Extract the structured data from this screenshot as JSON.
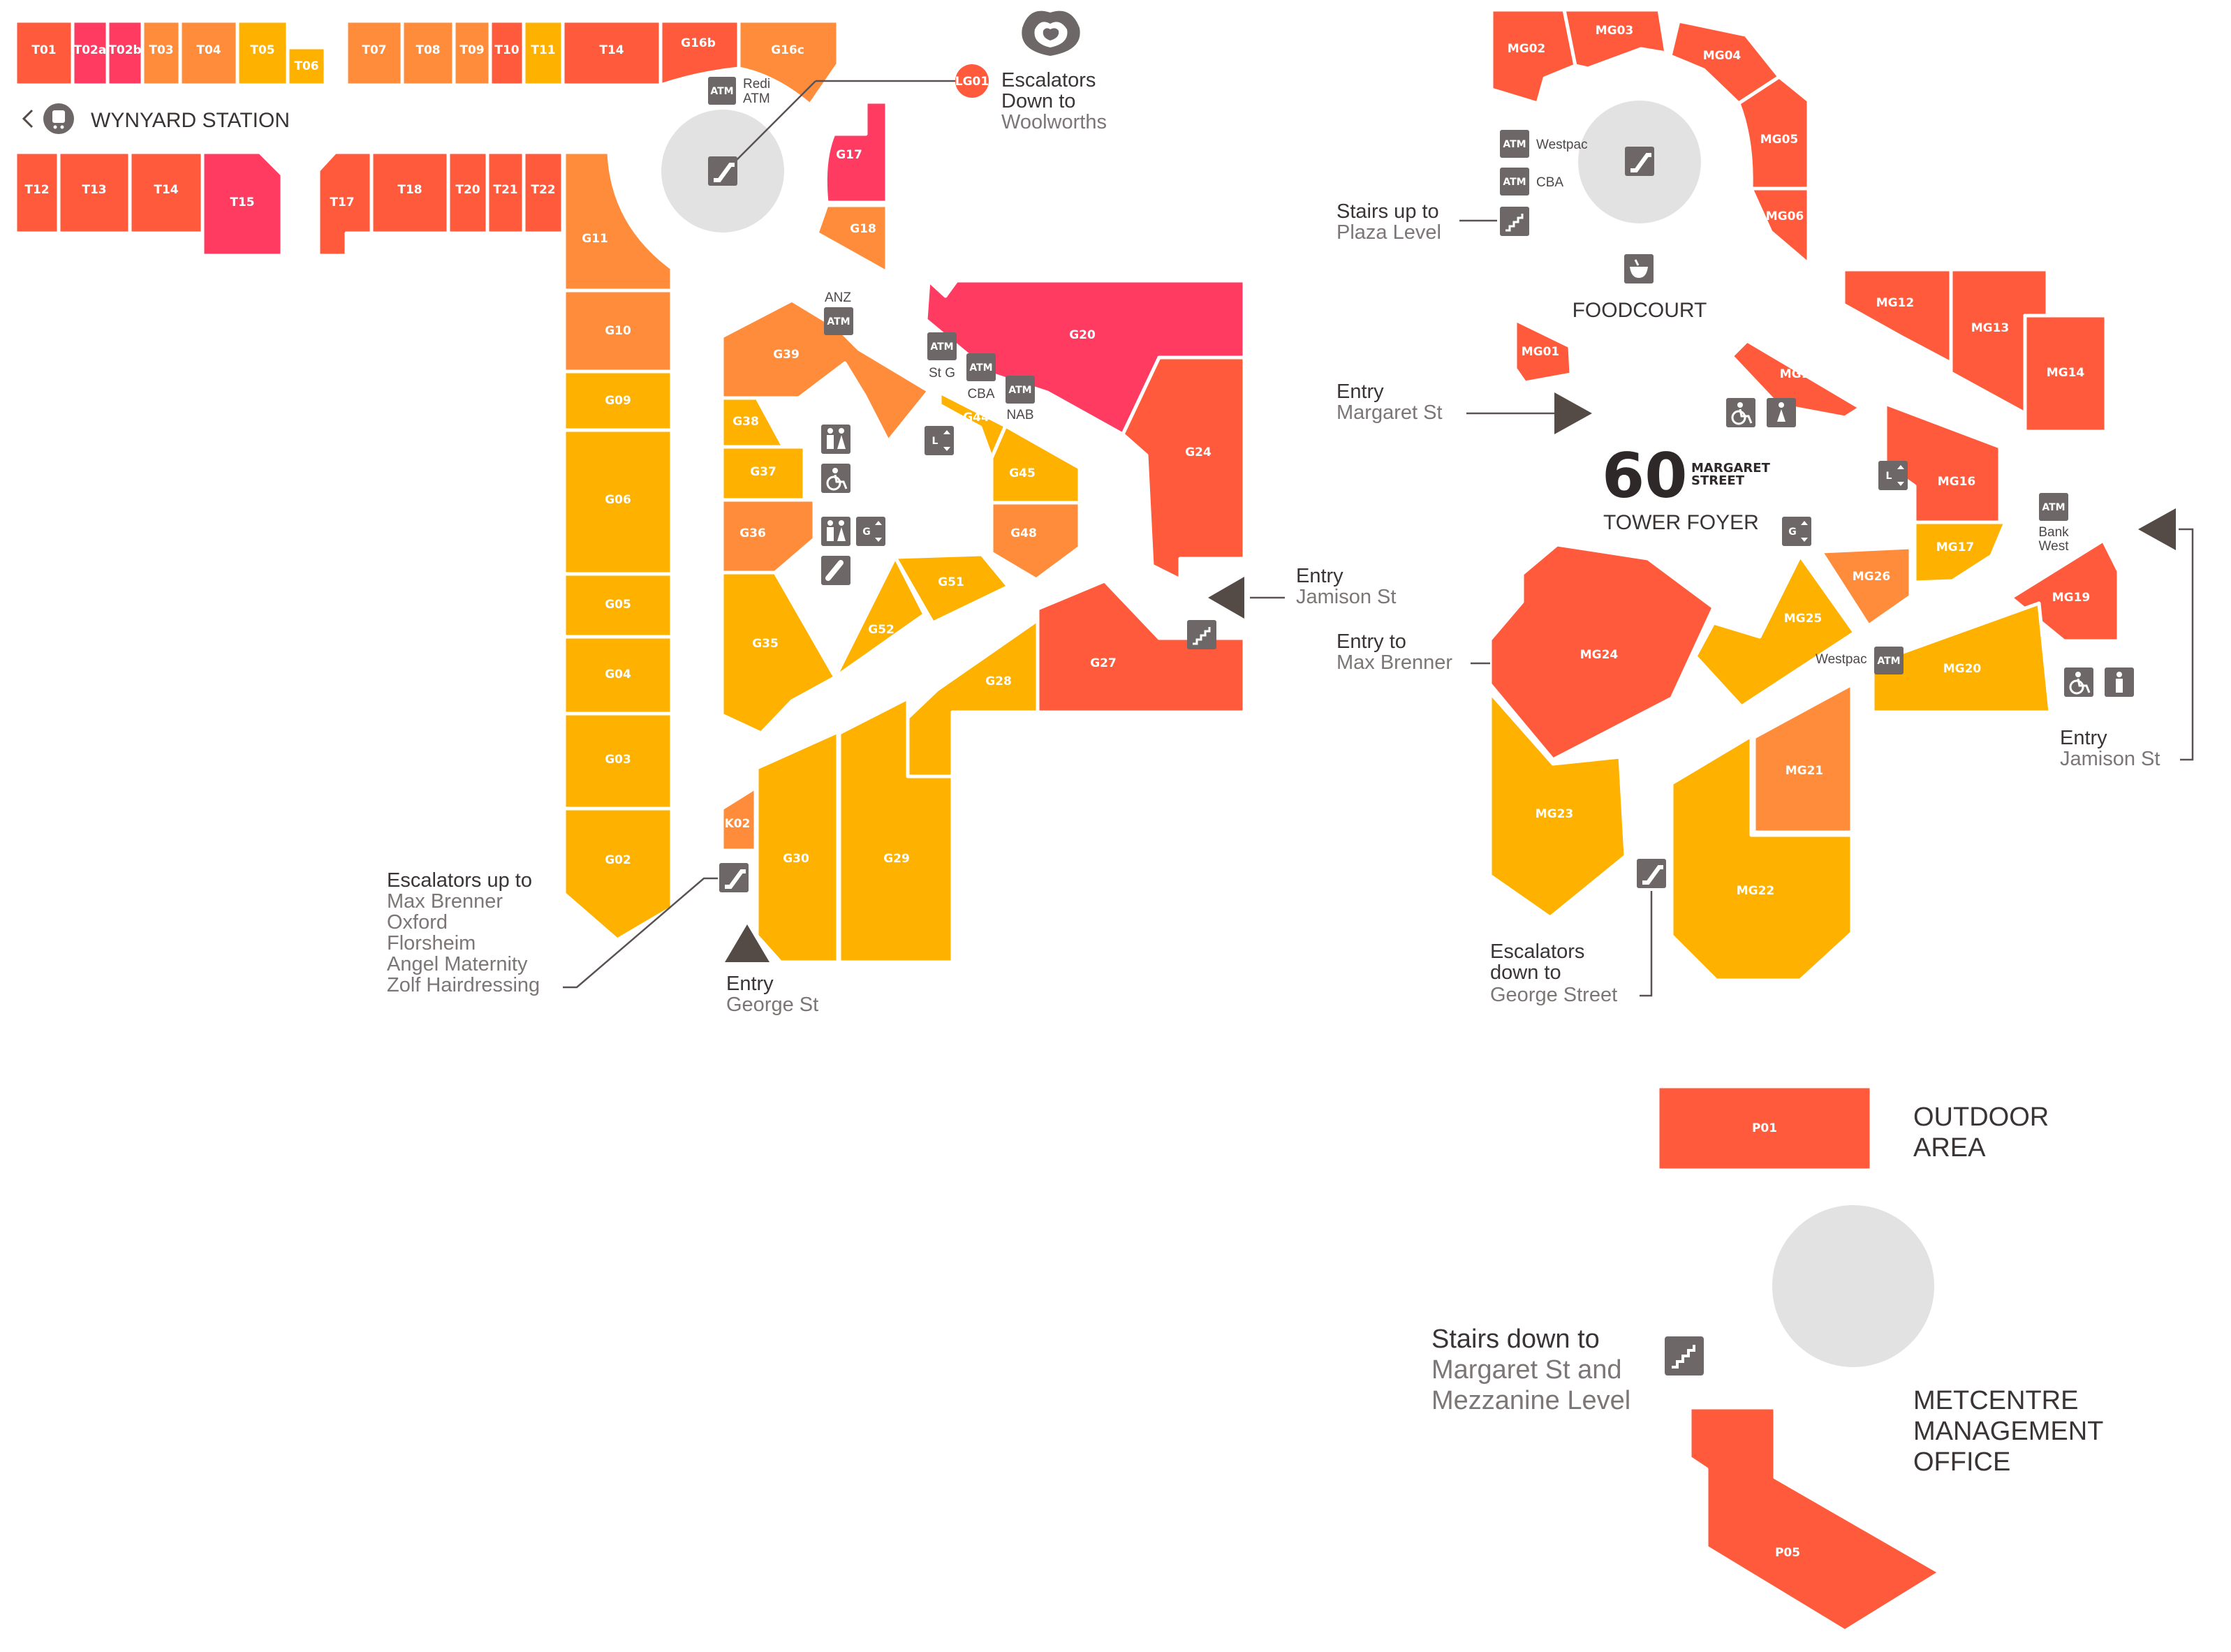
{
  "colors": {
    "red": "#ff5a3c",
    "pink": "#ff3b62",
    "orange": "#ff8c3a",
    "amber": "#ffb100",
    "icon_grey": "#6d6767",
    "lift_disc": "#e2e2e2"
  },
  "ground_level": {
    "station": {
      "label": "WYNYARD STATION",
      "icon": "train-icon"
    },
    "shops": {
      "T01": "T01",
      "T02a": "T02a",
      "T02b": "T02b",
      "T03": "T03",
      "T04": "T04",
      "T05": "T05",
      "T06": "T06",
      "T07": "T07",
      "T08": "T08",
      "T09": "T09",
      "T10": "T10",
      "T11": "T11",
      "T14a": "T14",
      "G16b": "G16b",
      "G16c": "G16c",
      "T12": "T12",
      "T13": "T13",
      "T14b": "T14",
      "T15": "T15",
      "T17": "T17",
      "T18": "T18",
      "T20": "T20",
      "T21": "T21",
      "T22": "T22",
      "G17": "G17",
      "G18": "G18",
      "G11": "G11",
      "G10": "G10",
      "G09": "G09",
      "G06": "G06",
      "G05": "G05",
      "G04": "G04",
      "G03": "G03",
      "G02": "G02",
      "G39": "G39",
      "G38": "G38",
      "G37": "G37",
      "G36": "G36",
      "G35": "G35",
      "G52": "G52",
      "G51": "G51",
      "G44": "G44",
      "G45": "G45",
      "G48": "G48",
      "G20": "G20",
      "G24": "G24",
      "G27": "G27",
      "G28": "G28",
      "G29": "G29",
      "G30": "G30",
      "K02": "K02",
      "LG01": "LG01"
    },
    "atm_redi": {
      "badge": "ATM",
      "name_line1": "Redi",
      "name_line2": "ATM"
    },
    "atm_anz": {
      "badge": "ATM",
      "name": "ANZ"
    },
    "atm_stg": {
      "badge": "ATM",
      "name": "St G"
    },
    "atm_cba": {
      "badge": "ATM",
      "name": "CBA"
    },
    "atm_nab": {
      "badge": "ATM",
      "name": "NAB"
    },
    "escalators_woolworths": {
      "line1": "Escalators",
      "line2": "Down to",
      "line3": "Woolworths"
    },
    "escalators_up": {
      "line1": "Escalators up to",
      "line2": "Max Brenner",
      "line3": "Oxford",
      "line4": "Florsheim",
      "line5": "Angel Maternity",
      "line6": "Zolf Hairdressing"
    },
    "entry_george": {
      "line1": "Entry",
      "line2": "George St"
    },
    "entry_jamison": {
      "line1": "Entry",
      "line2": "Jamison St"
    },
    "lift_level_l": "L",
    "lift_level_g": "G"
  },
  "mezzanine_level": {
    "shops": {
      "MG02": "MG02",
      "MG03": "MG03",
      "MG04": "MG04",
      "MG05": "MG05",
      "MG06": "MG06",
      "MG12": "MG12",
      "MG13": "MG13",
      "MG14": "MG14",
      "MG01": "MG01",
      "MG18": "MG18",
      "MG16": "MG16",
      "MG17": "MG17",
      "MG19": "MG19",
      "MG26": "MG26",
      "MG25": "MG25",
      "MG24": "MG24",
      "MG20": "MG20",
      "MG21": "MG21",
      "MG22": "MG22",
      "MG23": "MG23"
    },
    "atm_westpac_top": {
      "badge": "ATM",
      "name": "Westpac"
    },
    "atm_cba_top": {
      "badge": "ATM",
      "name": "CBA"
    },
    "atm_bankwest": {
      "badge": "ATM",
      "name_line1": "Bank",
      "name_line2": "West"
    },
    "atm_westpac_mid": {
      "badge": "ATM",
      "name": "Westpac"
    },
    "stairs_plaza": {
      "line1": "Stairs up to",
      "line2": "Plaza Level"
    },
    "foodcourt": "FOODCOURT",
    "entry_margaret": {
      "line1": "Entry",
      "line2": "Margaret St"
    },
    "tower": {
      "number": "60",
      "street_line1": "MARGARET",
      "street_line2": "STREET",
      "foyer": "TOWER FOYER"
    },
    "entry_max_brenner": {
      "line1": "Entry to",
      "line2": "Max Brenner"
    },
    "entry_jamison": {
      "line1": "Entry",
      "line2": "Jamison St"
    },
    "escalators_george": {
      "line1": "Escalators",
      "line2": "down to",
      "line3": "George Street"
    },
    "lift_level_l": "L",
    "lift_level_g": "G"
  },
  "plaza_level": {
    "shops": {
      "P01": "P01",
      "P05": "P05"
    },
    "outdoor_area": {
      "line1": "OUTDOOR",
      "line2": "AREA"
    },
    "stairs_down": {
      "line1": "Stairs down to",
      "line2": "Margaret St and",
      "line3": "Mezzanine Level"
    },
    "management": {
      "line1": "METCENTRE",
      "line2": "MANAGEMENT",
      "line3": "OFFICE"
    }
  }
}
